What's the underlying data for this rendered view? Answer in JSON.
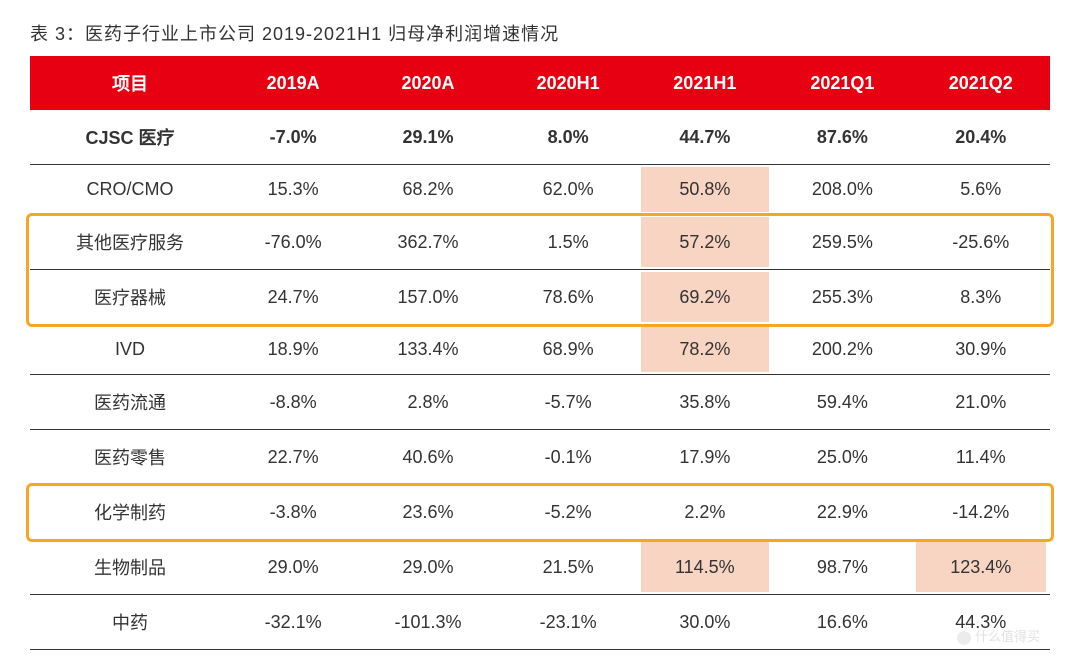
{
  "title": "表 3：医药子行业上市公司 2019-2021H1 归母净利润增速情况",
  "columns": [
    "项目",
    "2019A",
    "2020A",
    "2020H1",
    "2021H1",
    "2021Q1",
    "2021Q2"
  ],
  "rows": [
    {
      "label": "CJSC 医疗",
      "bold": true,
      "cells": [
        "-7.0%",
        "29.1%",
        "8.0%",
        "44.7%",
        "87.6%",
        "20.4%"
      ],
      "hl": []
    },
    {
      "label": "CRO/CMO",
      "bold": false,
      "cells": [
        "15.3%",
        "68.2%",
        "62.0%",
        "50.8%",
        "208.0%",
        "5.6%"
      ],
      "hl": [
        3
      ]
    },
    {
      "label": "其他医疗服务",
      "bold": false,
      "cells": [
        "-76.0%",
        "362.7%",
        "1.5%",
        "57.2%",
        "259.5%",
        "-25.6%"
      ],
      "hl": [
        3
      ]
    },
    {
      "label": "医疗器械",
      "bold": false,
      "cells": [
        "24.7%",
        "157.0%",
        "78.6%",
        "69.2%",
        "255.3%",
        "8.3%"
      ],
      "hl": [
        3
      ]
    },
    {
      "label": "IVD",
      "bold": false,
      "cells": [
        "18.9%",
        "133.4%",
        "68.9%",
        "78.2%",
        "200.2%",
        "30.9%"
      ],
      "hl": [
        3
      ]
    },
    {
      "label": "医药流通",
      "bold": false,
      "cells": [
        "-8.8%",
        "2.8%",
        "-5.7%",
        "35.8%",
        "59.4%",
        "21.0%"
      ],
      "hl": []
    },
    {
      "label": "医药零售",
      "bold": false,
      "cells": [
        "22.7%",
        "40.6%",
        "-0.1%",
        "17.9%",
        "25.0%",
        "11.4%"
      ],
      "hl": []
    },
    {
      "label": "化学制药",
      "bold": false,
      "cells": [
        "-3.8%",
        "23.6%",
        "-5.2%",
        "2.2%",
        "22.9%",
        "-14.2%"
      ],
      "hl": []
    },
    {
      "label": "生物制品",
      "bold": false,
      "cells": [
        "29.0%",
        "29.0%",
        "21.5%",
        "114.5%",
        "98.7%",
        "123.4%"
      ],
      "hl": [
        3,
        5
      ]
    },
    {
      "label": "中药",
      "bold": false,
      "cells": [
        "-32.1%",
        "-101.3%",
        "-23.1%",
        "30.0%",
        "16.6%",
        "44.3%"
      ],
      "hl": []
    }
  ],
  "highlight_boxes": [
    {
      "from_row": 2,
      "to_row": 3
    },
    {
      "from_row": 7,
      "to_row": 7
    }
  ],
  "colors": {
    "header_bg": "#e60012",
    "header_text": "#ffffff",
    "text": "#333333",
    "cell_border": "#333333",
    "highlight_cell": "#f8d4c2",
    "box_border": "#f5a623",
    "background": "#ffffff"
  },
  "fonts": {
    "title_size": 18,
    "cell_size": 18,
    "header_weight": "bold"
  },
  "watermark": "什么值得买"
}
